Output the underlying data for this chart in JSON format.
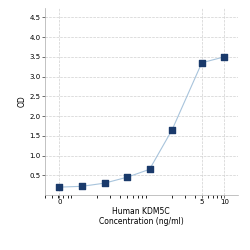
{
  "x": [
    0.0625,
    0.125,
    0.25,
    0.5,
    1,
    2,
    5,
    10
  ],
  "y": [
    0.2,
    0.22,
    0.3,
    0.45,
    0.65,
    1.65,
    3.35,
    3.5
  ],
  "xlabel_line1": "Human KDM5C",
  "xlabel_line2": "Concentration (ng/ml)",
  "ylabel": "OD",
  "line_color": "#A8C4DC",
  "marker_color": "#1A3A6B",
  "marker_size": 4,
  "xlim_log": [
    -1.3,
    1.2
  ],
  "ylim": [
    0,
    4.75
  ],
  "yticks": [
    0.5,
    1.0,
    1.5,
    2.0,
    2.5,
    3.0,
    3.5,
    4.0,
    4.5
  ],
  "xtick_vals": [
    0.0625,
    5,
    10
  ],
  "xtick_labels": [
    "0",
    "5",
    "10"
  ],
  "grid_color": "#D0D0D0",
  "background_color": "#FFFFFF",
  "axis_fontsize": 5.5,
  "tick_fontsize": 5
}
